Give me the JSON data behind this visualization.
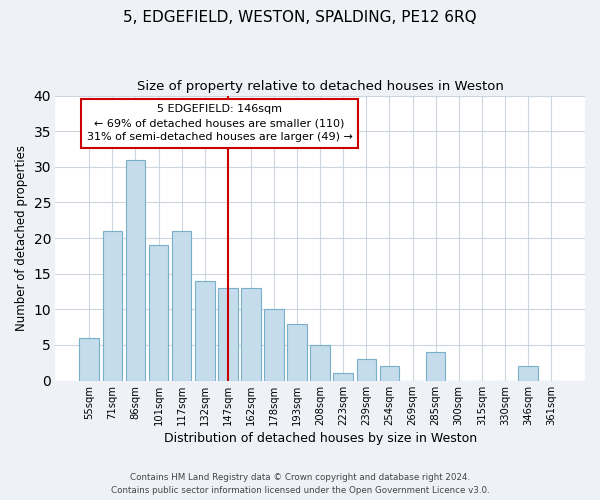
{
  "title": "5, EDGEFIELD, WESTON, SPALDING, PE12 6RQ",
  "subtitle": "Size of property relative to detached houses in Weston",
  "xlabel": "Distribution of detached houses by size in Weston",
  "ylabel": "Number of detached properties",
  "bar_labels": [
    "55sqm",
    "71sqm",
    "86sqm",
    "101sqm",
    "117sqm",
    "132sqm",
    "147sqm",
    "162sqm",
    "178sqm",
    "193sqm",
    "208sqm",
    "223sqm",
    "239sqm",
    "254sqm",
    "269sqm",
    "285sqm",
    "300sqm",
    "315sqm",
    "330sqm",
    "346sqm",
    "361sqm"
  ],
  "bar_values": [
    6,
    21,
    31,
    19,
    21,
    14,
    13,
    13,
    10,
    8,
    5,
    1,
    3,
    2,
    0,
    4,
    0,
    0,
    0,
    2,
    0
  ],
  "bar_color": "#c5dced",
  "bar_edge_color": "#7aafc8",
  "vline_index": 6,
  "vline_color": "#cc0000",
  "annotation_title": "5 EDGEFIELD: 146sqm",
  "annotation_line1": "← 69% of detached houses are smaller (110)",
  "annotation_line2": "31% of semi-detached houses are larger (49) →",
  "annotation_box_edge": "#cc0000",
  "ylim": [
    0,
    40
  ],
  "yticks": [
    0,
    5,
    10,
    15,
    20,
    25,
    30,
    35,
    40
  ],
  "footer_line1": "Contains HM Land Registry data © Crown copyright and database right 2024.",
  "footer_line2": "Contains public sector information licensed under the Open Government Licence v3.0.",
  "bg_color": "#eef2f7",
  "plot_bg_color": "#ffffff",
  "grid_color": "#ccd6e0"
}
